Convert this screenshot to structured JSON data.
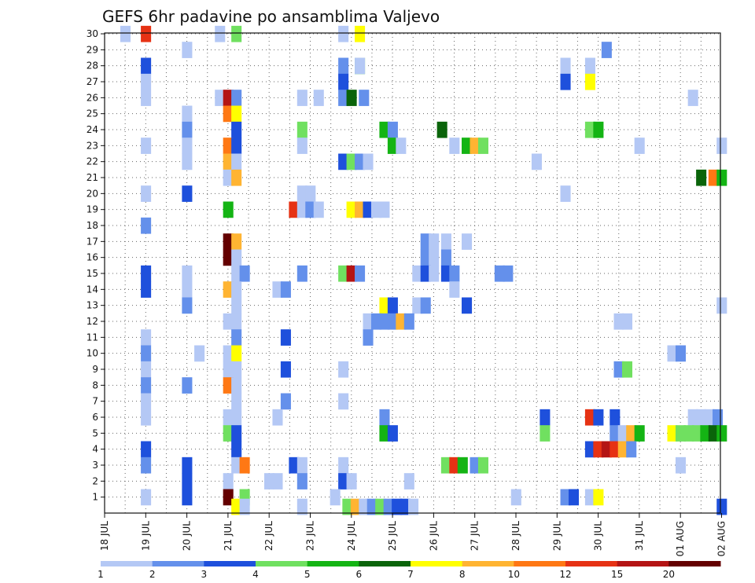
{
  "chart_data": {
    "type": "heatmap",
    "title": "GEFS 6hr padavine po ansamblima Valjevo",
    "xlabel": "",
    "ylabel": "",
    "x_tick_labels": [
      "18 JUL",
      "19 JUL",
      "20 JUL",
      "21 JUL",
      "22 JUL",
      "23 JUL",
      "24 JUL",
      "25 JUL",
      "26 JUL",
      "27 JUL",
      "28 JUL",
      "29 JUL",
      "30 JUL",
      "31 JUL",
      "01 AUG",
      "02 AUG"
    ],
    "y_tick_labels": [
      "1",
      "2",
      "3",
      "4",
      "5",
      "6",
      "7",
      "8",
      "9",
      "10",
      "11",
      "12",
      "13",
      "14",
      "15",
      "16",
      "17",
      "18",
      "19",
      "20",
      "21",
      "22",
      "23",
      "24",
      "25",
      "26",
      "27",
      "28",
      "29",
      "30"
    ],
    "xlim_steps": [
      0,
      60
    ],
    "ylim": [
      0,
      30
    ],
    "grid": true,
    "colorbar": {
      "levels": [
        "1",
        "2",
        "3",
        "4",
        "5",
        "6",
        "7",
        "8",
        "10",
        "12",
        "15",
        "20"
      ],
      "colors": [
        "#b4c8f5",
        "#6490eb",
        "#1e50dc",
        "#70e060",
        "#14b414",
        "#0a640a",
        "#ffff00",
        "#ffb432",
        "#ff7814",
        "#e63214",
        "#b41414",
        "#640000"
      ]
    },
    "cells": [
      [
        1,
        30,
        0
      ],
      [
        2,
        30,
        9
      ],
      [
        5.6,
        30,
        0
      ],
      [
        6.4,
        30,
        3
      ],
      [
        11.6,
        30,
        0
      ],
      [
        12.4,
        30,
        6
      ],
      [
        4,
        29,
        0
      ],
      [
        24.4,
        29,
        1
      ],
      [
        2,
        28,
        2
      ],
      [
        12.4,
        28,
        4
      ],
      [
        11.6,
        28,
        1
      ],
      [
        12.4,
        28,
        0
      ],
      [
        22.4,
        28,
        0
      ],
      [
        23.6,
        28,
        0
      ],
      [
        2,
        27,
        0
      ],
      [
        11.6,
        27,
        2
      ],
      [
        22.4,
        27,
        2
      ],
      [
        23.6,
        27,
        6
      ],
      [
        2,
        26,
        0
      ],
      [
        5.6,
        26,
        0
      ],
      [
        6,
        26,
        10
      ],
      [
        6.4,
        26,
        1
      ],
      [
        9.6,
        26,
        0
      ],
      [
        10.4,
        26,
        0
      ],
      [
        11.6,
        26,
        1
      ],
      [
        12,
        26,
        5
      ],
      [
        12.6,
        26,
        1
      ],
      [
        28.6,
        26,
        0
      ],
      [
        4,
        25,
        0
      ],
      [
        6,
        25,
        8
      ],
      [
        6.4,
        25,
        6
      ],
      [
        4,
        24,
        1
      ],
      [
        6.4,
        24,
        2
      ],
      [
        9.6,
        24,
        3
      ],
      [
        13.6,
        24,
        4
      ],
      [
        14,
        24,
        1
      ],
      [
        16.4,
        24,
        5
      ],
      [
        23.6,
        24,
        3
      ],
      [
        24,
        24,
        4
      ],
      [
        2,
        23,
        0
      ],
      [
        4,
        23,
        0
      ],
      [
        6,
        23,
        8
      ],
      [
        6.4,
        23,
        2
      ],
      [
        9.6,
        23,
        0
      ],
      [
        14,
        23,
        4
      ],
      [
        14.4,
        23,
        0
      ],
      [
        17,
        23,
        0
      ],
      [
        17.6,
        23,
        4
      ],
      [
        18,
        23,
        7
      ],
      [
        18.4,
        23,
        3
      ],
      [
        26,
        23,
        0
      ],
      [
        30,
        23,
        0
      ],
      [
        4,
        22,
        0
      ],
      [
        6,
        22,
        7
      ],
      [
        6.4,
        22,
        0
      ],
      [
        11.6,
        22,
        2
      ],
      [
        12,
        22,
        3
      ],
      [
        12.4,
        22,
        1
      ],
      [
        12.8,
        22,
        0
      ],
      [
        21,
        22,
        0
      ],
      [
        6,
        21,
        0
      ],
      [
        6.4,
        21,
        7
      ],
      [
        29,
        21,
        5
      ],
      [
        29.6,
        21,
        8
      ],
      [
        30,
        21,
        4
      ],
      [
        2,
        20,
        0
      ],
      [
        4,
        20,
        2
      ],
      [
        9.6,
        20,
        0
      ],
      [
        10,
        20,
        0
      ],
      [
        22.4,
        20,
        0
      ],
      [
        6,
        19,
        4
      ],
      [
        9.2,
        19,
        9
      ],
      [
        9.6,
        19,
        0
      ],
      [
        10,
        19,
        1
      ],
      [
        10.4,
        19,
        0
      ],
      [
        12,
        19,
        6
      ],
      [
        12.4,
        19,
        7
      ],
      [
        12.8,
        19,
        2
      ],
      [
        13.2,
        19,
        0
      ],
      [
        13.6,
        19,
        0
      ],
      [
        2,
        18,
        1
      ],
      [
        6,
        17,
        11
      ],
      [
        6.4,
        17,
        7
      ],
      [
        15.6,
        17,
        1
      ],
      [
        16,
        17,
        0
      ],
      [
        16.6,
        17,
        0
      ],
      [
        17.6,
        17,
        0
      ],
      [
        6,
        16,
        11
      ],
      [
        6.4,
        16,
        0
      ],
      [
        15.6,
        16,
        1
      ],
      [
        16,
        16,
        0
      ],
      [
        16.6,
        16,
        1
      ],
      [
        6.4,
        15,
        0
      ],
      [
        6.8,
        15,
        1
      ],
      [
        2,
        15,
        2
      ],
      [
        4,
        15,
        0
      ],
      [
        9.6,
        15,
        1
      ],
      [
        11.6,
        15,
        3
      ],
      [
        12,
        15,
        10
      ],
      [
        12.4,
        15,
        1
      ],
      [
        15.2,
        15,
        0
      ],
      [
        15.6,
        15,
        2
      ],
      [
        16,
        15,
        0
      ],
      [
        16.6,
        15,
        2
      ],
      [
        17,
        15,
        1
      ],
      [
        19.2,
        15,
        1
      ],
      [
        19.6,
        15,
        1
      ],
      [
        2,
        14,
        2
      ],
      [
        4,
        14,
        0
      ],
      [
        6,
        14,
        7
      ],
      [
        6.4,
        14,
        0
      ],
      [
        8.4,
        14,
        0
      ],
      [
        8.8,
        14,
        1
      ],
      [
        17,
        14,
        0
      ],
      [
        4,
        13,
        1
      ],
      [
        6.4,
        13,
        0
      ],
      [
        13.6,
        13,
        6
      ],
      [
        14,
        13,
        2
      ],
      [
        15.2,
        13,
        0
      ],
      [
        15.6,
        13,
        1
      ],
      [
        17.6,
        13,
        2
      ],
      [
        30,
        13,
        0
      ],
      [
        6,
        12,
        0
      ],
      [
        6.4,
        12,
        0
      ],
      [
        12.8,
        12,
        0
      ],
      [
        13.2,
        12,
        1
      ],
      [
        13.6,
        12,
        1
      ],
      [
        14,
        12,
        1
      ],
      [
        14.4,
        12,
        7
      ],
      [
        14.8,
        12,
        1
      ],
      [
        25,
        12,
        0
      ],
      [
        25.4,
        12,
        0
      ],
      [
        2,
        11,
        0
      ],
      [
        6.4,
        11,
        1
      ],
      [
        8.8,
        11,
        2
      ],
      [
        12.8,
        11,
        1
      ],
      [
        2,
        10,
        1
      ],
      [
        4.6,
        10,
        0
      ],
      [
        6,
        10,
        0
      ],
      [
        6.4,
        10,
        6
      ],
      [
        27.6,
        10,
        0
      ],
      [
        28,
        10,
        1
      ],
      [
        2,
        9,
        0
      ],
      [
        6,
        9,
        0
      ],
      [
        6.4,
        9,
        0
      ],
      [
        8.8,
        9,
        2
      ],
      [
        11.6,
        9,
        0
      ],
      [
        25,
        9,
        1
      ],
      [
        25.4,
        9,
        3
      ],
      [
        2,
        8,
        1
      ],
      [
        4,
        8,
        1
      ],
      [
        6,
        8,
        8
      ],
      [
        6.4,
        8,
        0
      ],
      [
        2,
        7,
        0
      ],
      [
        6.4,
        7,
        0
      ],
      [
        8.8,
        7,
        1
      ],
      [
        11.6,
        7,
        0
      ],
      [
        2,
        6,
        0
      ],
      [
        6,
        6,
        0
      ],
      [
        6.4,
        6,
        0
      ],
      [
        8.4,
        6,
        0
      ],
      [
        13.6,
        6,
        1
      ],
      [
        21.4,
        6,
        2
      ],
      [
        23.6,
        6,
        9
      ],
      [
        24,
        6,
        2
      ],
      [
        24.8,
        6,
        2
      ],
      [
        28.6,
        6,
        0
      ],
      [
        29,
        6,
        0
      ],
      [
        29.4,
        6,
        0
      ],
      [
        29.8,
        6,
        1
      ],
      [
        6,
        5,
        3
      ],
      [
        6.4,
        5,
        2
      ],
      [
        13.6,
        5,
        4
      ],
      [
        14,
        5,
        2
      ],
      [
        21.4,
        5,
        3
      ],
      [
        24.8,
        5,
        1
      ],
      [
        25.2,
        5,
        0
      ],
      [
        25.6,
        5,
        7
      ],
      [
        26,
        5,
        4
      ],
      [
        27.6,
        5,
        6
      ],
      [
        28,
        5,
        3
      ],
      [
        28.4,
        5,
        3
      ],
      [
        28.8,
        5,
        3
      ],
      [
        29.2,
        5,
        4
      ],
      [
        29.6,
        5,
        5
      ],
      [
        30,
        5,
        4
      ],
      [
        2,
        4,
        2
      ],
      [
        6.4,
        4,
        2
      ],
      [
        23.6,
        4,
        2
      ],
      [
        24,
        4,
        9
      ],
      [
        24.4,
        4,
        10
      ],
      [
        24.8,
        4,
        9
      ],
      [
        25.2,
        4,
        7
      ],
      [
        25.6,
        4,
        1
      ],
      [
        2,
        3,
        1
      ],
      [
        4,
        3,
        2
      ],
      [
        6.4,
        3,
        0
      ],
      [
        6.8,
        3,
        8
      ],
      [
        9.2,
        3,
        2
      ],
      [
        9.6,
        3,
        0
      ],
      [
        11.6,
        3,
        0
      ],
      [
        16.6,
        3,
        3
      ],
      [
        17,
        3,
        9
      ],
      [
        17.4,
        3,
        4
      ],
      [
        18,
        3,
        1
      ],
      [
        18.4,
        3,
        3
      ],
      [
        28,
        3,
        0
      ],
      [
        4,
        2,
        2
      ],
      [
        6,
        2,
        0
      ],
      [
        8,
        2,
        0
      ],
      [
        8.4,
        2,
        0
      ],
      [
        9.6,
        2,
        1
      ],
      [
        11.6,
        2,
        2
      ],
      [
        12,
        2,
        0
      ],
      [
        14.8,
        2,
        0
      ],
      [
        2,
        1,
        0
      ],
      [
        4,
        1,
        2
      ],
      [
        6,
        1,
        11
      ],
      [
        6.8,
        1,
        3
      ],
      [
        11.2,
        1,
        0
      ],
      [
        20,
        1,
        0
      ],
      [
        22.4,
        1,
        1
      ],
      [
        22.8,
        1,
        2
      ],
      [
        23.6,
        1,
        0
      ],
      [
        24,
        1,
        6
      ],
      [
        6.4,
        0.4,
        6
      ],
      [
        6.8,
        0.4,
        0
      ],
      [
        9.6,
        0.4,
        0
      ],
      [
        11.8,
        0.4,
        3
      ],
      [
        12.2,
        0.4,
        7
      ],
      [
        12.6,
        0.4,
        0
      ],
      [
        13,
        0.4,
        1
      ],
      [
        13.4,
        0.4,
        3
      ],
      [
        13.8,
        0.4,
        1
      ],
      [
        14.2,
        0.4,
        2
      ],
      [
        14.6,
        0.4,
        2
      ],
      [
        15,
        0.4,
        0
      ],
      [
        30,
        0.4,
        2
      ]
    ]
  }
}
